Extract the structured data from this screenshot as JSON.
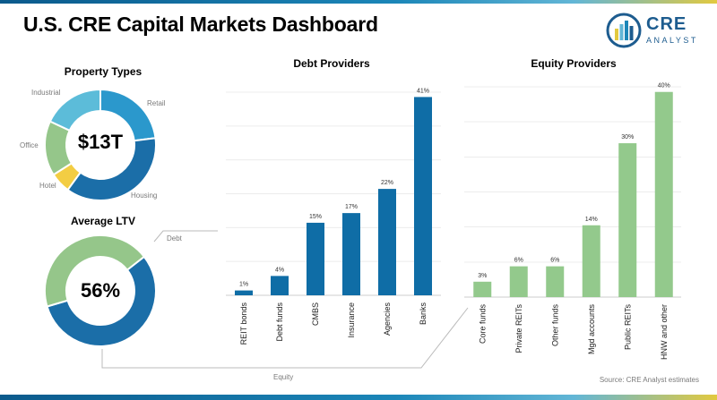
{
  "title": "U.S. CRE Capital Markets Dashboard",
  "logo": {
    "word": "CRE",
    "sub": "ANALYST"
  },
  "source": "Source: CRE Analyst estimates",
  "colors": {
    "debt_bar": "#0f6da6",
    "equity_bar": "#93c98c",
    "donut_retail": "#2b98cc",
    "donut_housing": "#1b6ea8",
    "donut_hotel": "#f3cd43",
    "donut_office": "#95c68a",
    "donut_industrial": "#5cbcd9",
    "ltv_debt": "#1b6ea8",
    "ltv_equity": "#95c68a"
  },
  "labels": {
    "debt": "Debt",
    "equity": "Equity"
  },
  "chart_data": [
    {
      "type": "pie",
      "title": "Property Types",
      "center_label": "$13T",
      "categories": [
        "Retail",
        "Housing",
        "Hotel",
        "Office",
        "Industrial"
      ],
      "values": [
        23,
        37,
        6,
        16,
        18
      ]
    },
    {
      "type": "pie",
      "title": "Average LTV",
      "center_label": "56%",
      "categories": [
        "Debt",
        "Equity"
      ],
      "values": [
        56,
        44
      ]
    },
    {
      "type": "bar",
      "title": "Debt Providers",
      "categories": [
        "REIT bonds",
        "Debt funds",
        "CMBS",
        "Insurance",
        "Agencies",
        "Banks"
      ],
      "values": [
        1,
        4,
        15,
        17,
        22,
        41
      ],
      "value_labels": [
        "1%",
        "4%",
        "15%",
        "17%",
        "22%",
        "41%"
      ],
      "ylim": [
        0,
        42
      ],
      "grid": true
    },
    {
      "type": "bar",
      "title": "Equity Providers",
      "categories": [
        "Core funds",
        "Private REITs",
        "Other funds",
        "Mgd accounts",
        "Public REITs",
        "HNW and other"
      ],
      "values": [
        3,
        6,
        6,
        14,
        30,
        40
      ],
      "value_labels": [
        "3%",
        "6%",
        "6%",
        "14%",
        "30%",
        "40%"
      ],
      "ylim": [
        0,
        41
      ],
      "grid": true
    }
  ]
}
